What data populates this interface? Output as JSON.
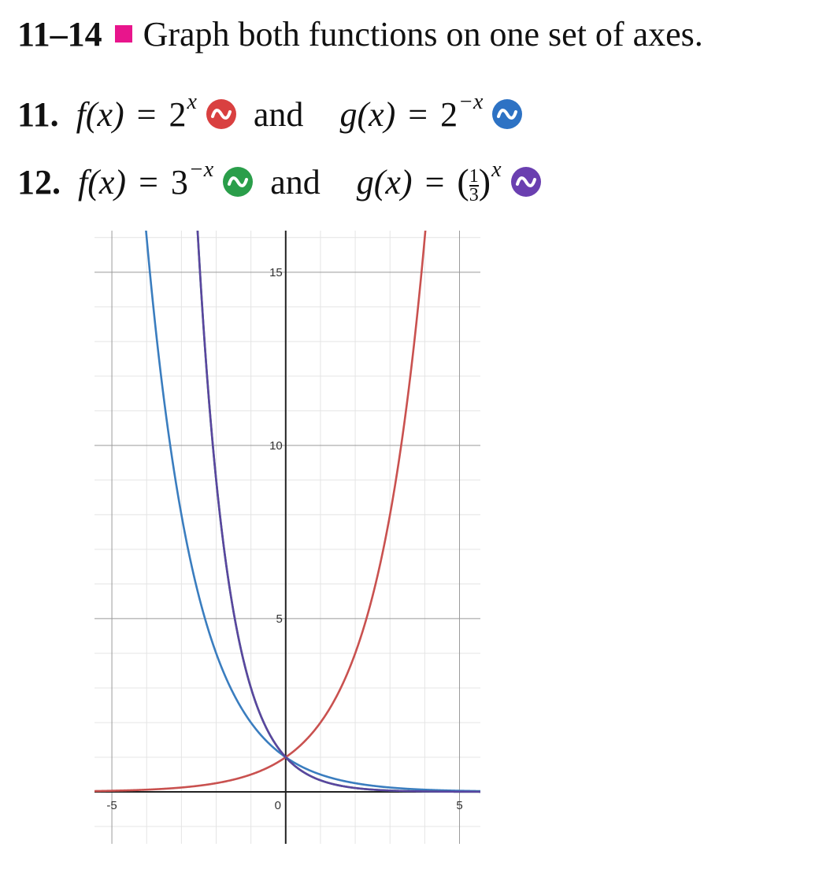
{
  "header": {
    "range": "11–14",
    "text": "Graph both functions on one set of axes.",
    "square_color": "#e8158c"
  },
  "problems": [
    {
      "number": "11.",
      "f_name": "f(x)",
      "f_base": "2",
      "f_exp": "x",
      "f_icon_color": "#d94040",
      "and": "and",
      "g_name": "g(x)",
      "g_base": "2",
      "g_exp": "−x",
      "g_icon_color": "#2d72c4"
    },
    {
      "number": "12.",
      "f_name": "f(x)",
      "f_base": "3",
      "f_exp": "−x",
      "f_icon_color": "#2a9e4a",
      "and": "and",
      "g_name": "g(x)",
      "g_num": "1",
      "g_den": "3",
      "g_exp": "x",
      "g_icon_color": "#6a3fb0"
    }
  ],
  "chart_data": {
    "type": "line",
    "xlim": [
      -5.5,
      5.6
    ],
    "ylim": [
      -1.5,
      16.2
    ],
    "grid": true,
    "x_major_ticks": [
      -5,
      0,
      5
    ],
    "y_major_ticks": [
      5,
      10,
      15
    ],
    "x_tick_labels": [
      "-5",
      "0",
      "5"
    ],
    "y_tick_labels": [
      "5",
      "10",
      "15"
    ],
    "series": [
      {
        "expression": "2^x",
        "base": 2,
        "sign": 1,
        "color": "#c9514f"
      },
      {
        "expression": "2^-x",
        "base": 2,
        "sign": -1,
        "color": "#3a7dbf"
      },
      {
        "expression": "3^-x",
        "base": 3,
        "sign": -1,
        "color": "#2a9e4a"
      },
      {
        "expression": "(1/3)^x",
        "base": 3,
        "sign": -1,
        "color": "#5a45a0"
      }
    ]
  }
}
